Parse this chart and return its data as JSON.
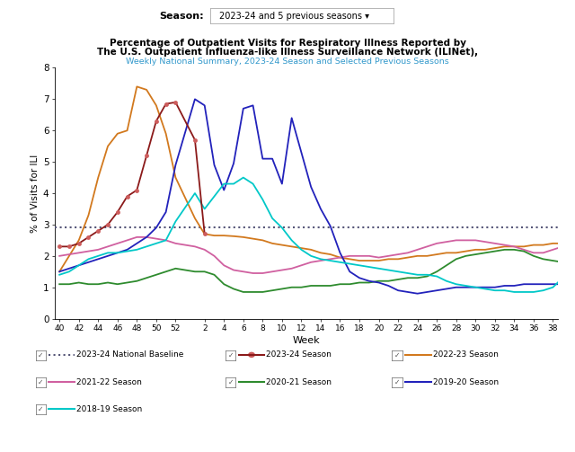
{
  "title_line1": "Percentage of Outpatient Visits for Respiratory Illness Reported by",
  "title_line2": "The U.S. Outpatient Influenza-like Illness Surveillance Network (ILINet),",
  "title_line3": "Weekly National Summary, 2023-24 Season and Selected Previous Seasons",
  "ylabel": "% of Visits for ILI",
  "xlabel": "Week",
  "baseline_value": 2.9,
  "baseline_color": "#555577",
  "ylim": [
    0,
    8
  ],
  "background_color": "#ffffff",
  "seasons": {
    "2023-24": {
      "color": "#8B1A1A",
      "marker_color": "#CD5C5C",
      "data_x": [
        40,
        41,
        42,
        43,
        44,
        45,
        46,
        47,
        48,
        49,
        50,
        51,
        52,
        1,
        2
      ],
      "data_y": [
        2.3,
        2.3,
        2.4,
        2.6,
        2.8,
        3.0,
        3.4,
        3.9,
        4.1,
        5.2,
        6.3,
        6.85,
        6.9,
        5.7,
        2.7
      ]
    },
    "2022-23": {
      "color": "#D2791E",
      "data_x": [
        40,
        41,
        42,
        43,
        44,
        45,
        46,
        47,
        48,
        49,
        50,
        51,
        52,
        1,
        2,
        3,
        4,
        5,
        6,
        7,
        8,
        9,
        10,
        11,
        12,
        13,
        14,
        15,
        16,
        17,
        18,
        19,
        20,
        21,
        22,
        23,
        24,
        25,
        26,
        27,
        28,
        29,
        30,
        31,
        32,
        33,
        34,
        35,
        36,
        37,
        38,
        39
      ],
      "data_y": [
        1.5,
        2.0,
        2.5,
        3.3,
        4.5,
        5.5,
        5.9,
        6.0,
        7.4,
        7.3,
        6.8,
        5.9,
        4.5,
        3.2,
        2.7,
        2.65,
        2.65,
        2.63,
        2.6,
        2.55,
        2.5,
        2.4,
        2.35,
        2.3,
        2.25,
        2.2,
        2.1,
        2.05,
        1.95,
        1.9,
        1.85,
        1.85,
        1.85,
        1.9,
        1.9,
        1.95,
        2.0,
        2.0,
        2.05,
        2.1,
        2.1,
        2.15,
        2.2,
        2.2,
        2.25,
        2.3,
        2.3,
        2.3,
        2.35,
        2.35,
        2.4,
        2.4
      ]
    },
    "2021-22": {
      "color": "#D060A0",
      "data_x": [
        40,
        41,
        42,
        43,
        44,
        45,
        46,
        47,
        48,
        49,
        50,
        51,
        52,
        1,
        2,
        3,
        4,
        5,
        6,
        7,
        8,
        9,
        10,
        11,
        12,
        13,
        14,
        15,
        16,
        17,
        18,
        19,
        20,
        21,
        22,
        23,
        24,
        25,
        26,
        27,
        28,
        29,
        30,
        31,
        32,
        33,
        34,
        35,
        36,
        37,
        38,
        39
      ],
      "data_y": [
        2.0,
        2.05,
        2.1,
        2.15,
        2.2,
        2.3,
        2.4,
        2.5,
        2.6,
        2.6,
        2.55,
        2.5,
        2.4,
        2.3,
        2.2,
        2.0,
        1.7,
        1.55,
        1.5,
        1.45,
        1.45,
        1.5,
        1.55,
        1.6,
        1.7,
        1.8,
        1.85,
        1.9,
        1.95,
        2.0,
        2.0,
        2.0,
        1.95,
        2.0,
        2.05,
        2.1,
        2.2,
        2.3,
        2.4,
        2.45,
        2.5,
        2.5,
        2.5,
        2.45,
        2.4,
        2.35,
        2.3,
        2.2,
        2.1,
        2.1,
        2.2,
        2.3
      ]
    },
    "2020-21": {
      "color": "#2E8B2E",
      "data_x": [
        40,
        41,
        42,
        43,
        44,
        45,
        46,
        47,
        48,
        49,
        50,
        51,
        52,
        1,
        2,
        3,
        4,
        5,
        6,
        7,
        8,
        9,
        10,
        11,
        12,
        13,
        14,
        15,
        16,
        17,
        18,
        19,
        20,
        21,
        22,
        23,
        24,
        25,
        26,
        27,
        28,
        29,
        30,
        31,
        32,
        33,
        34,
        35,
        36,
        37,
        38,
        39
      ],
      "data_y": [
        1.1,
        1.1,
        1.15,
        1.1,
        1.1,
        1.15,
        1.1,
        1.15,
        1.2,
        1.3,
        1.4,
        1.5,
        1.6,
        1.5,
        1.5,
        1.4,
        1.1,
        0.95,
        0.85,
        0.85,
        0.85,
        0.9,
        0.95,
        1.0,
        1.0,
        1.05,
        1.05,
        1.05,
        1.1,
        1.1,
        1.15,
        1.15,
        1.2,
        1.2,
        1.25,
        1.3,
        1.3,
        1.35,
        1.5,
        1.7,
        1.9,
        2.0,
        2.05,
        2.1,
        2.15,
        2.2,
        2.2,
        2.15,
        2.0,
        1.9,
        1.85,
        1.8
      ]
    },
    "2019-20": {
      "color": "#2222BB",
      "data_x": [
        40,
        41,
        42,
        43,
        44,
        45,
        46,
        47,
        48,
        49,
        50,
        51,
        52,
        1,
        2,
        3,
        4,
        5,
        6,
        7,
        8,
        9,
        10,
        11,
        12,
        13,
        14,
        15,
        16,
        17,
        18,
        19,
        20,
        21,
        22,
        23,
        24,
        25,
        26,
        27,
        28,
        29,
        30,
        31,
        32,
        33,
        34,
        35,
        36,
        37,
        38,
        39
      ],
      "data_y": [
        1.5,
        1.6,
        1.7,
        1.8,
        1.9,
        2.0,
        2.1,
        2.2,
        2.4,
        2.6,
        2.9,
        3.4,
        4.9,
        7.0,
        6.8,
        4.9,
        4.1,
        4.95,
        6.7,
        6.8,
        5.1,
        5.1,
        4.3,
        6.4,
        5.3,
        4.2,
        3.5,
        2.95,
        2.1,
        1.5,
        1.3,
        1.2,
        1.15,
        1.05,
        0.9,
        0.85,
        0.8,
        0.85,
        0.9,
        0.95,
        1.0,
        1.0,
        1.0,
        1.0,
        1.0,
        1.05,
        1.05,
        1.1,
        1.1,
        1.1,
        1.1,
        1.1
      ]
    },
    "2018-19": {
      "color": "#00C8C8",
      "data_x": [
        40,
        41,
        42,
        43,
        44,
        45,
        46,
        47,
        48,
        49,
        50,
        51,
        52,
        1,
        2,
        3,
        4,
        5,
        6,
        7,
        8,
        9,
        10,
        11,
        12,
        13,
        14,
        15,
        16,
        17,
        18,
        19,
        20,
        21,
        22,
        23,
        24,
        25,
        26,
        27,
        28,
        29,
        30,
        31,
        32,
        33,
        34,
        35,
        36,
        37,
        38,
        39
      ],
      "data_y": [
        1.4,
        1.5,
        1.7,
        1.9,
        2.0,
        2.1,
        2.1,
        2.15,
        2.2,
        2.3,
        2.4,
        2.5,
        3.1,
        4.0,
        3.5,
        3.9,
        4.3,
        4.3,
        4.5,
        4.3,
        3.8,
        3.2,
        2.9,
        2.5,
        2.2,
        2.0,
        1.9,
        1.85,
        1.8,
        1.75,
        1.7,
        1.65,
        1.6,
        1.55,
        1.5,
        1.45,
        1.4,
        1.4,
        1.35,
        1.2,
        1.1,
        1.05,
        1.0,
        0.95,
        0.9,
        0.9,
        0.85,
        0.85,
        0.85,
        0.9,
        1.0,
        1.3
      ]
    }
  },
  "legend_items": [
    {
      "label": "2023-24 National Baseline",
      "color": "#555577",
      "linestyle": "dotted",
      "has_marker": false
    },
    {
      "label": "2023-24 Season",
      "color": "#8B1A1A",
      "linestyle": "solid",
      "has_marker": true,
      "marker_color": "#CD5C5C"
    },
    {
      "label": "2022-23 Season",
      "color": "#D2791E",
      "linestyle": "solid",
      "has_marker": false
    },
    {
      "label": "2021-22 Season",
      "color": "#D060A0",
      "linestyle": "solid",
      "has_marker": false
    },
    {
      "label": "2020-21 Season",
      "color": "#2E8B2E",
      "linestyle": "solid",
      "has_marker": false
    },
    {
      "label": "2019-20 Season",
      "color": "#2222BB",
      "linestyle": "solid",
      "has_marker": false
    },
    {
      "label": "2018-19 Season",
      "color": "#00C8C8",
      "linestyle": "solid",
      "has_marker": false
    }
  ]
}
